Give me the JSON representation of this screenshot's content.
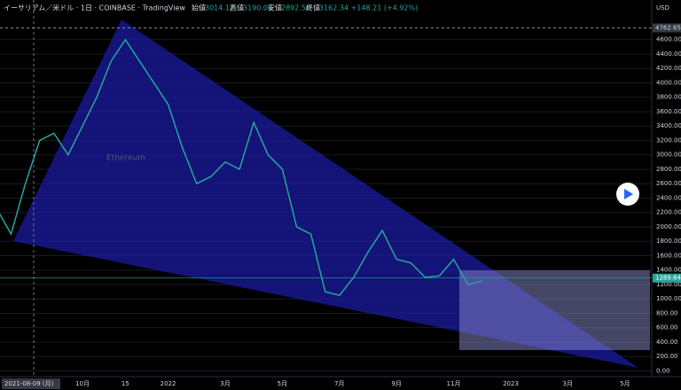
{
  "header": {
    "title": "イーサリアム／米ドル · 1日 · COINBASE · TradingView",
    "open_label": "始値",
    "open": "3014.12",
    "high_label": "高値",
    "high": "3190.00",
    "low_label": "安値",
    "low": "2892.50",
    "close_label": "終値",
    "close": "3162.34 +148.21 (+4.92%)",
    "currency": "USD",
    "crosshair_date": "2021-08-09 (月)",
    "watermark": "Ethereum"
  },
  "chart_data": {
    "type": "line",
    "color": "#26a69a",
    "grid": true,
    "categories": [
      null,
      null,
      null,
      null,
      null,
      null,
      "10月",
      null,
      null,
      "15",
      null,
      null,
      "2022",
      null,
      null,
      null,
      "3月",
      null,
      null,
      null,
      "5月",
      null,
      null,
      null,
      "7月",
      null,
      null,
      null,
      "9月",
      null,
      null,
      null,
      "11月",
      null,
      null,
      null,
      "2023",
      null,
      null,
      null,
      "3月",
      null,
      null,
      null,
      "5月"
    ],
    "values": [
      2250,
      1900,
      2600,
      3200,
      3300,
      3000,
      3400,
      3800,
      4300,
      4600,
      4300,
      4000,
      3700,
      3100,
      2600,
      2700,
      2900,
      2800,
      3450,
      3000,
      2800,
      2000,
      1900,
      1100,
      1050,
      1300,
      1650,
      1950,
      1550,
      1500,
      1300,
      1320,
      1550,
      1200,
      1250,
      null,
      null,
      null,
      null,
      null,
      null,
      null,
      null,
      null,
      null
    ],
    "ylim": [
      -80,
      5150
    ],
    "yticks": [
      {
        "value": 0,
        "label": "0.00"
      },
      {
        "value": 200,
        "label": "200.00"
      },
      {
        "value": 400,
        "label": "400.00"
      },
      {
        "value": 600,
        "label": "600.00"
      },
      {
        "value": 800,
        "label": "800.00"
      },
      {
        "value": 1000,
        "label": "1000.00"
      },
      {
        "value": 1200,
        "label": "1200.00"
      },
      {
        "value": 1400,
        "label": "1400.00"
      },
      {
        "value": 1600,
        "label": "1600.00"
      },
      {
        "value": 1800,
        "label": "1800.00"
      },
      {
        "value": 2000,
        "label": "2000.00"
      },
      {
        "value": 2200,
        "label": "2200.00"
      },
      {
        "value": 2400,
        "label": "2400.00"
      },
      {
        "value": 2600,
        "label": "2600.00"
      },
      {
        "value": 2800,
        "label": "2800.00"
      },
      {
        "value": 3000,
        "label": "3000.00"
      },
      {
        "value": 3200,
        "label": "3200.00"
      },
      {
        "value": 3400,
        "label": "3400.00"
      },
      {
        "value": 3600,
        "label": "3600.00"
      },
      {
        "value": 3800,
        "label": "3800.00"
      },
      {
        "value": 4000,
        "label": "4000.00"
      },
      {
        "value": 4200,
        "label": "4200.00"
      },
      {
        "value": 4400,
        "label": "4400.00"
      },
      {
        "value": 4600,
        "label": "4600.00"
      }
    ],
    "high_line": {
      "value": 4762.65,
      "label": "4762.65"
    },
    "last_price": {
      "value": 1289.64,
      "label": "1289.64"
    }
  }
}
